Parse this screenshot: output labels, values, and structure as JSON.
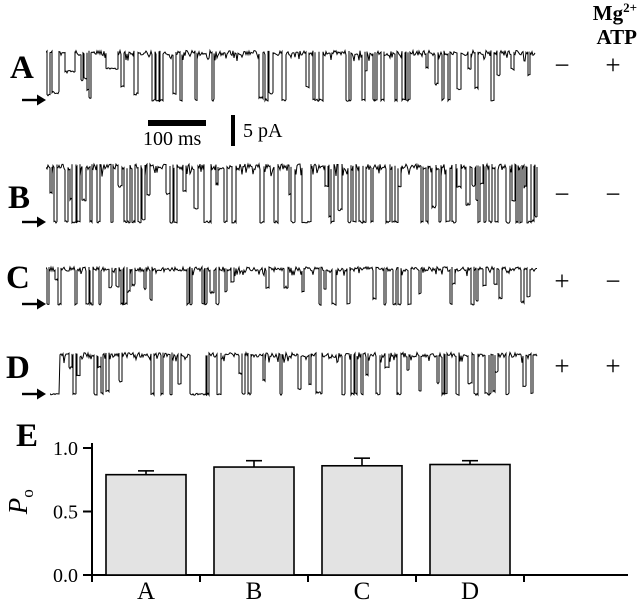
{
  "figure": {
    "header_mg_base": "Mg",
    "header_mg_sup": "2+",
    "header_atp": "ATP",
    "panels": [
      {
        "label": "A",
        "mg": "−",
        "atp": "+"
      },
      {
        "label": "B",
        "mg": "−",
        "atp": "−"
      },
      {
        "label": "C",
        "mg": "+",
        "atp": "−"
      },
      {
        "label": "D",
        "mg": "+",
        "atp": "+"
      }
    ],
    "bar_panel_label": "E",
    "scalebar_time": "100 ms",
    "scalebar_current": "5 pA",
    "ylabel_base": "P",
    "ylabel_sub": "o"
  },
  "chart_data": {
    "type": "bar",
    "title": "",
    "xlabel": "",
    "ylabel": "Po",
    "categories": [
      "A",
      "B",
      "C",
      "D"
    ],
    "values": [
      0.79,
      0.85,
      0.86,
      0.87
    ],
    "errors": [
      0.03,
      0.05,
      0.06,
      0.03
    ],
    "ylim": [
      0.0,
      1.0
    ],
    "yticks": [
      0.0,
      0.5,
      1.0
    ],
    "ytick_labels": [
      "0.0",
      "0.5",
      "1.0"
    ],
    "bar_fill": "#e3e3e3",
    "bar_edge": "#000000",
    "grid": false,
    "legend": "none"
  }
}
